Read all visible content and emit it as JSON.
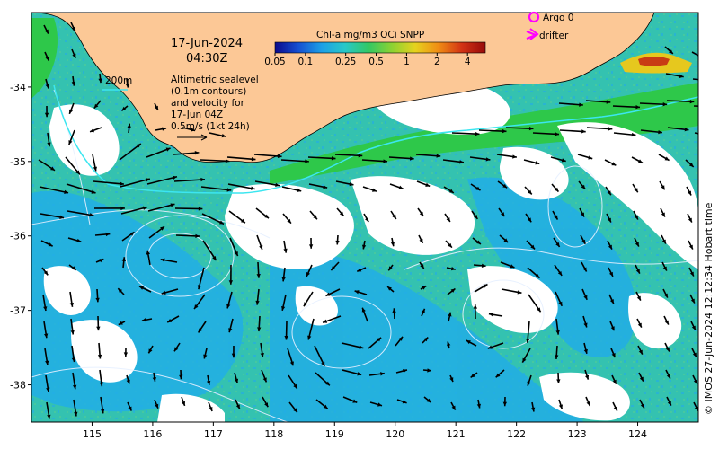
{
  "map": {
    "date": "17-Jun-2024",
    "time": "04:30Z",
    "colorbar": {
      "title": "Chl-a mg/m3 OCi SNPP",
      "tick_labels": [
        "0.05",
        "0.1",
        "0.25",
        "0.5",
        "1",
        "2",
        "4"
      ],
      "tick_values": [
        0.05,
        0.1,
        0.25,
        0.5,
        1,
        2,
        4
      ],
      "range": [
        0.05,
        6
      ],
      "scale": "log",
      "colors": [
        "#0a0a8c",
        "#1450d2",
        "#1ea0e6",
        "#28c8c8",
        "#32c864",
        "#8cd232",
        "#e6d21e",
        "#f08c14",
        "#d23214",
        "#960a0a"
      ]
    },
    "legend": {
      "argo_label": "Argo 0",
      "drifter_label": "drifter",
      "argo_color": "#ff00ff",
      "drifter_color": "#ff00ff"
    },
    "contour_label": "200m",
    "info_lines": [
      "Altimetric sealevel",
      "(0.1m contours)",
      "and velocity for",
      "17-Jun 04Z",
      "0.5m/s (1kt 24h)"
    ],
    "credit": "© IMOS 27-Jun-2024 12:12:34 Hobart time",
    "x_ticks": [
      {
        "value": 115,
        "label": "115"
      },
      {
        "value": 116,
        "label": "116"
      },
      {
        "value": 117,
        "label": "117"
      },
      {
        "value": 118,
        "label": "118"
      },
      {
        "value": 119,
        "label": "119"
      },
      {
        "value": 120,
        "label": "120"
      },
      {
        "value": 121,
        "label": "121"
      },
      {
        "value": 122,
        "label": "122"
      },
      {
        "value": 123,
        "label": "123"
      },
      {
        "value": 124,
        "label": "124"
      }
    ],
    "y_ticks": [
      {
        "value": -34,
        "label": "-34"
      },
      {
        "value": -35,
        "label": "-35"
      },
      {
        "value": -36,
        "label": "-36"
      },
      {
        "value": -37,
        "label": "-37"
      },
      {
        "value": -38,
        "label": "-38"
      }
    ],
    "lon_range": [
      114,
      125
    ],
    "lat_range": [
      -38.5,
      -33
    ],
    "colors": {
      "land": "#fcc896",
      "ocean_low": "#32c8b4",
      "ocean_mid": "#1eb4e6",
      "shelf_green": "#28c83c",
      "cloud": "#ffffff",
      "contour": "#e6f0ff",
      "shelf_contour": "#3ce6f0",
      "arrow": "#000000"
    }
  }
}
